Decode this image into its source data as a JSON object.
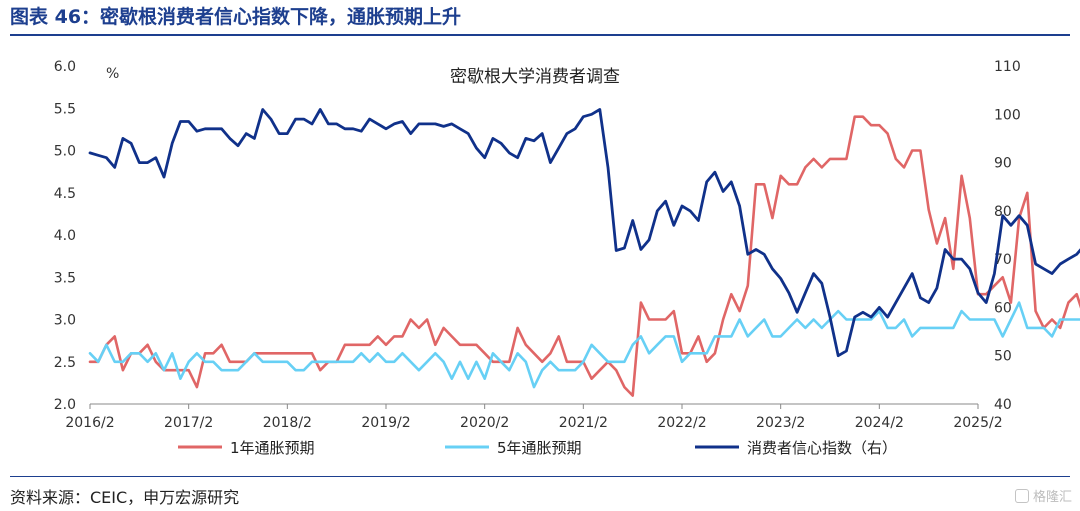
{
  "title": "图表 46：密歇根消费者信心指数下降，通胀预期上升",
  "source": "资料来源：CEIC，申万宏源研究",
  "watermark": "格隆汇",
  "colors": {
    "title": "#1d3f8f",
    "inflation_1y": "#e06666",
    "inflation_5y": "#67d0f5",
    "sentiment": "#10318a"
  },
  "chart_data": {
    "type": "line",
    "title": "密歇根大学消费者调查",
    "left_axis": {
      "unit": "%",
      "ylim": [
        2.0,
        6.0
      ],
      "ticks": [
        "2.0",
        "2.5",
        "3.0",
        "3.5",
        "4.0",
        "4.5",
        "5.0",
        "5.5",
        "6.0"
      ]
    },
    "right_axis": {
      "ylim": [
        40,
        110
      ],
      "ticks": [
        "40",
        "50",
        "60",
        "70",
        "80",
        "90",
        "100",
        "110"
      ]
    },
    "x_ticks": [
      "2016/2",
      "2017/2",
      "2018/2",
      "2019/2",
      "2020/2",
      "2021/2",
      "2022/2",
      "2023/2",
      "2024/2",
      "2025/2"
    ],
    "x_start": "2016/2",
    "grid": false,
    "legend_position": "bottom",
    "series": [
      {
        "name": "1年通胀预期",
        "axis": "left",
        "values": [
          2.5,
          2.5,
          2.7,
          2.8,
          2.4,
          2.6,
          2.6,
          2.7,
          2.5,
          2.4,
          2.4,
          2.4,
          2.4,
          2.2,
          2.6,
          2.6,
          2.7,
          2.5,
          2.5,
          2.5,
          2.6,
          2.6,
          2.6,
          2.6,
          2.6,
          2.6,
          2.6,
          2.6,
          2.4,
          2.5,
          2.5,
          2.7,
          2.7,
          2.7,
          2.7,
          2.8,
          2.7,
          2.8,
          2.8,
          3.0,
          2.9,
          3.0,
          2.7,
          2.9,
          2.8,
          2.7,
          2.7,
          2.7,
          2.6,
          2.5,
          2.5,
          2.5,
          2.9,
          2.7,
          2.6,
          2.5,
          2.6,
          2.8,
          2.5,
          2.5,
          2.5,
          2.3,
          2.4,
          2.5,
          2.4,
          2.2,
          2.1,
          3.2,
          3.0,
          3.0,
          3.0,
          3.1,
          2.6,
          2.6,
          2.8,
          2.5,
          2.6,
          3.0,
          3.3,
          3.1,
          3.4,
          4.6,
          4.6,
          4.2,
          4.7,
          4.6,
          4.6,
          4.8,
          4.9,
          4.8,
          4.9,
          4.9,
          4.9,
          5.4,
          5.4,
          5.3,
          5.3,
          5.2,
          4.9,
          4.8,
          5.0,
          5.0,
          4.3,
          3.9,
          4.2,
          3.6,
          4.7,
          4.2,
          3.3,
          3.3,
          3.4,
          3.5,
          3.2,
          4.2,
          4.5,
          3.1,
          2.9,
          3.0,
          2.9,
          3.2,
          3.3,
          3.0,
          2.9,
          2.8,
          2.7,
          2.7,
          2.6,
          2.8,
          3.3,
          4.3
        ]
      },
      {
        "name": "5年通胀预期",
        "axis": "left",
        "values": [
          2.6,
          2.5,
          2.7,
          2.5,
          2.5,
          2.6,
          2.6,
          2.5,
          2.6,
          2.4,
          2.6,
          2.3,
          2.5,
          2.6,
          2.5,
          2.5,
          2.4,
          2.4,
          2.4,
          2.5,
          2.6,
          2.5,
          2.5,
          2.5,
          2.5,
          2.4,
          2.4,
          2.5,
          2.5,
          2.5,
          2.5,
          2.5,
          2.5,
          2.6,
          2.5,
          2.6,
          2.5,
          2.5,
          2.6,
          2.5,
          2.4,
          2.5,
          2.6,
          2.5,
          2.3,
          2.5,
          2.3,
          2.5,
          2.3,
          2.6,
          2.5,
          2.4,
          2.6,
          2.5,
          2.2,
          2.4,
          2.5,
          2.4,
          2.4,
          2.4,
          2.5,
          2.7,
          2.6,
          2.5,
          2.5,
          2.5,
          2.7,
          2.8,
          2.6,
          2.7,
          2.8,
          2.8,
          2.5,
          2.6,
          2.6,
          2.6,
          2.8,
          2.8,
          2.8,
          3.0,
          2.8,
          2.9,
          3.0,
          2.8,
          2.8,
          2.9,
          3.0,
          2.9,
          3.0,
          2.9,
          3.0,
          3.1,
          3.0,
          3.0,
          3.0,
          3.0,
          3.1,
          2.9,
          2.9,
          3.0,
          2.8,
          2.9,
          2.9,
          2.9,
          2.9,
          2.9,
          3.1,
          3.0,
          3.0,
          3.0,
          3.0,
          2.8,
          3.0,
          3.2,
          2.9,
          2.9,
          2.9,
          2.8,
          3.0,
          3.0,
          3.0,
          3.0,
          3.0,
          3.1,
          3.0,
          3.2,
          3.0,
          3.2,
          3.5
        ]
      },
      {
        "name": "消费者信心指数（右）",
        "axis": "right",
        "values": [
          92,
          91.5,
          91,
          89,
          95,
          94,
          90,
          90,
          91,
          87,
          94,
          98.5,
          98.5,
          96.5,
          97,
          97,
          97,
          95,
          93.5,
          96,
          95,
          101,
          99,
          96,
          96,
          99,
          99,
          98,
          101,
          98,
          98,
          97,
          97,
          96.5,
          99,
          98,
          97,
          98,
          98.5,
          96,
          98,
          98,
          98,
          97.5,
          98,
          97,
          96,
          93,
          91,
          95,
          94,
          92,
          91,
          95,
          94.5,
          96,
          90,
          93,
          96,
          97,
          99.5,
          100,
          101,
          89,
          71.8,
          72.3,
          78,
          72,
          74,
          80,
          82,
          77,
          81,
          80,
          78,
          86,
          88,
          84,
          86,
          81,
          71,
          72,
          71,
          68,
          66,
          63,
          59,
          63,
          67,
          65,
          58,
          50,
          51,
          58,
          59,
          58,
          60,
          58,
          61,
          64,
          67,
          62,
          61,
          64,
          72,
          70,
          70,
          68,
          63,
          61,
          67,
          79,
          77,
          79,
          77,
          69,
          68,
          67,
          69,
          70,
          71,
          73,
          72,
          67,
          64.7
        ]
      }
    ]
  },
  "legend": [
    {
      "label": "1年通胀预期",
      "color": "#e06666"
    },
    {
      "label": "5年通胀预期",
      "color": "#67d0f5"
    },
    {
      "label": "消费者信心指数（右）",
      "color": "#10318a"
    }
  ]
}
